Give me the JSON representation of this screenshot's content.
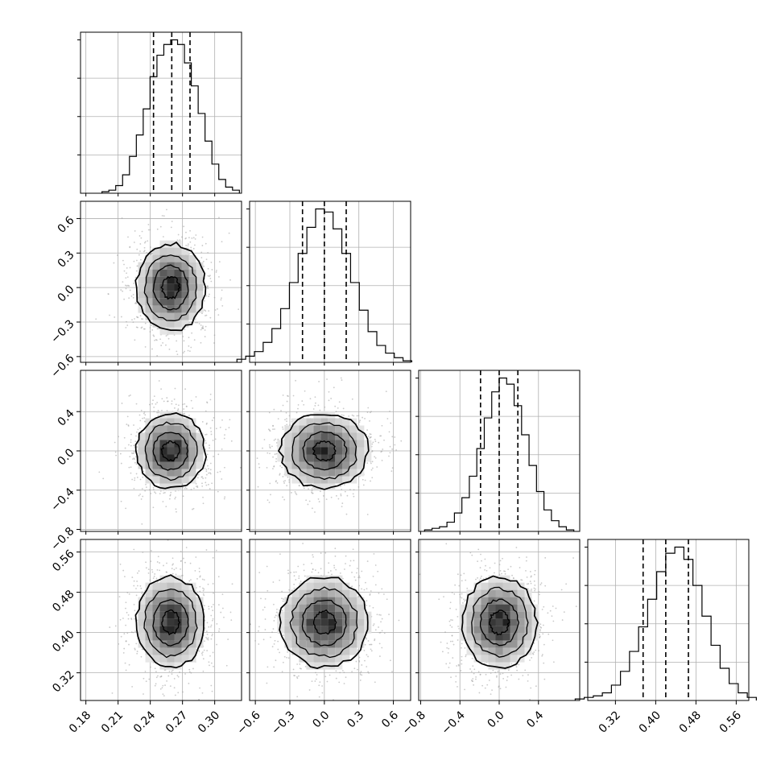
{
  "chart_data": {
    "type": "corner",
    "n_params": 4,
    "grid": true,
    "params": [
      {
        "range": [
          0.175,
          0.325
        ],
        "ticks": [
          0.18,
          0.21,
          0.24,
          0.27,
          0.3
        ],
        "tick_labels": [
          "0.18",
          "0.21",
          "0.24",
          "0.27",
          "0.30"
        ],
        "center": 0.259,
        "sigma": 0.016,
        "quantiles": [
          0.243,
          0.26,
          0.277
        ]
      },
      {
        "range": [
          -0.65,
          0.75
        ],
        "ticks": [
          -0.6,
          -0.3,
          0.0,
          0.3,
          0.6
        ],
        "tick_labels": [
          "−0.6",
          "−0.3",
          "0.0",
          "0.3",
          "0.6"
        ],
        "center": 0.0,
        "sigma": 0.19,
        "quantiles": [
          -0.19,
          0.0,
          0.19
        ]
      },
      {
        "range": [
          -0.82,
          0.82
        ],
        "ticks": [
          -0.8,
          -0.4,
          0.0,
          0.4
        ],
        "tick_labels": [
          "−0.8",
          "−0.4",
          "0.0",
          "0.4"
        ],
        "center": 0.0,
        "sigma": 0.19,
        "quantiles": [
          -0.19,
          0.0,
          0.19
        ]
      },
      {
        "range": [
          0.265,
          0.585
        ],
        "ticks": [
          0.32,
          0.4,
          0.48,
          0.56
        ],
        "tick_labels": [
          "0.32",
          "0.40",
          "0.48",
          "0.56"
        ],
        "center": 0.42,
        "sigma": 0.045,
        "quantiles": [
          0.375,
          0.42,
          0.465
        ]
      }
    ],
    "histograms": [
      {
        "param": 0,
        "bins": 20,
        "counts": [
          1,
          2,
          5,
          12,
          24,
          38,
          55,
          76,
          90,
          97,
          100,
          97,
          85,
          70,
          52,
          34,
          19,
          9,
          4,
          2
        ],
        "ylim": [
          0,
          105
        ]
      },
      {
        "param": 1,
        "bins": 20,
        "counts": [
          2,
          4,
          7,
          13,
          22,
          35,
          52,
          71,
          88,
          100,
          98,
          87,
          71,
          52,
          34,
          20,
          11,
          6,
          3,
          1
        ],
        "ylim": [
          0,
          105
        ]
      },
      {
        "param": 2,
        "bins": 20,
        "counts": [
          1,
          2,
          3,
          6,
          12,
          22,
          36,
          54,
          74,
          91,
          100,
          96,
          82,
          63,
          43,
          26,
          14,
          7,
          3,
          1
        ],
        "ylim": [
          0,
          105
        ]
      },
      {
        "param": 3,
        "bins": 20,
        "counts": [
          1,
          2,
          3,
          5,
          10,
          19,
          32,
          48,
          66,
          84,
          96,
          100,
          92,
          75,
          55,
          36,
          21,
          11,
          5,
          2
        ],
        "ylim": [
          0,
          105
        ]
      }
    ],
    "contour_levels_sigma": [
      0.5,
      1.0,
      1.5,
      2.0
    ],
    "scatter_color": "#9e9e9e",
    "line_color": "#000000",
    "grid_color": "#b0b0b0"
  }
}
